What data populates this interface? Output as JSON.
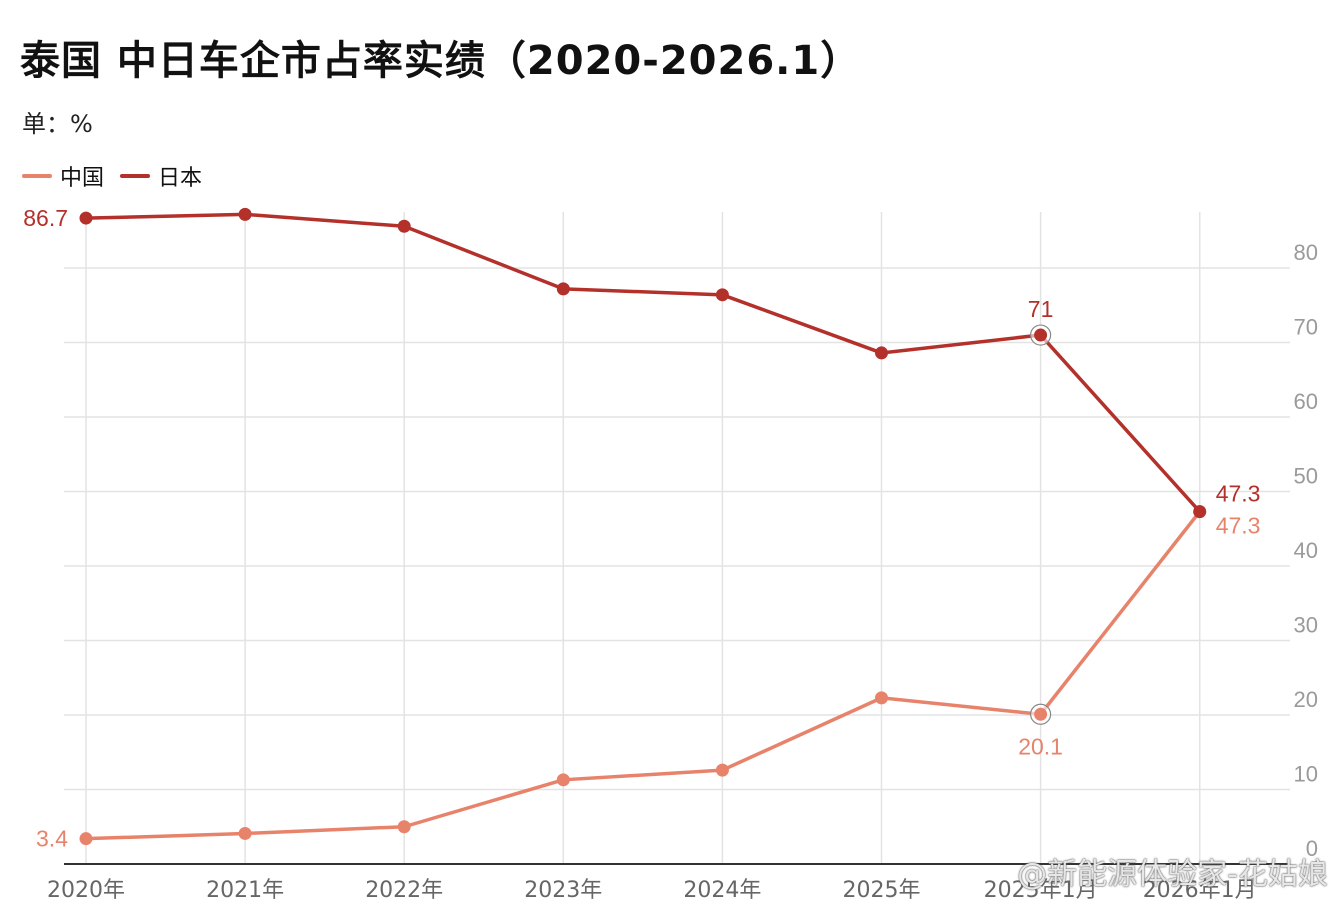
{
  "title": "泰国 中日车企市占率实绩（2020-2026.1）",
  "unit": "单：%",
  "watermark": "@新能源体验家-花姑娘",
  "chart_data": {
    "type": "line",
    "categories": [
      "2020年",
      "2021年",
      "2022年",
      "2023年",
      "2024年",
      "2025年",
      "2025年1月",
      "2026年1月"
    ],
    "series": [
      {
        "name": "中国",
        "color": "#e8836b",
        "values": [
          3.4,
          4.1,
          5.0,
          11.3,
          12.6,
          22.3,
          20.1,
          47.3
        ],
        "labels": {
          "0": "3.4",
          "6": "20.1",
          "7": "47.3"
        }
      },
      {
        "name": "日本",
        "color": "#b4302a",
        "values": [
          86.7,
          87.2,
          85.6,
          77.2,
          76.4,
          68.6,
          71.0,
          47.3
        ],
        "labels": {
          "0": "86.7",
          "6": "71",
          "7": "47.3"
        }
      }
    ],
    "y_ticks": [
      0,
      10,
      20,
      30,
      40,
      50,
      60,
      70,
      80
    ],
    "ylim": [
      0,
      87
    ],
    "y_axis_side": "right",
    "grid": true,
    "legend_position": "top-left",
    "highlighted_index": 6
  }
}
